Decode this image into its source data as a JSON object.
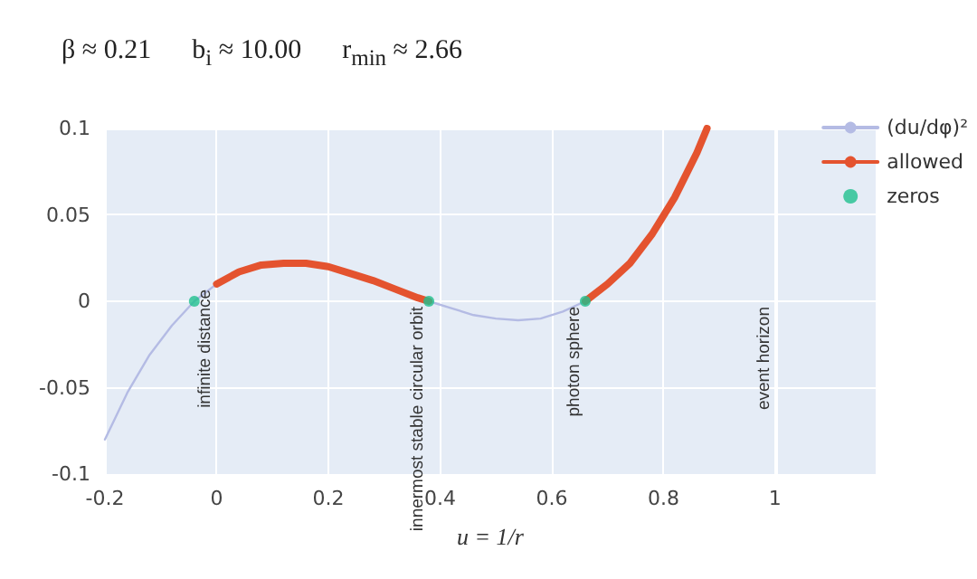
{
  "chart_data": {
    "type": "line",
    "title": "β ≈ 0.21      b$_{i}$ ≈ 10.00      r$_{min}$ ≈ 2.66",
    "xlabel": "u = 1/r",
    "series": [
      {
        "name": "(du/dφ)²",
        "color": "#b4bbe4",
        "x": [
          -0.2,
          -0.16,
          -0.12,
          -0.08,
          -0.04,
          0,
          0.2,
          0.38,
          0.42,
          0.46,
          0.5,
          0.54,
          0.58,
          0.62,
          0.66
        ],
        "values": [
          -0.08,
          -0.053,
          -0.031,
          -0.014,
          0,
          0.01,
          null,
          0,
          -0.004,
          -0.008,
          -0.01,
          -0.011,
          -0.01,
          -0.006,
          0
        ]
      },
      {
        "name": "allowed",
        "color": "#e4532f",
        "x": [
          0,
          0.04,
          0.08,
          0.12,
          0.16,
          0.2,
          0.24,
          0.28,
          0.32,
          0.36,
          0.38,
          0.5,
          0.66,
          0.7,
          0.74,
          0.78,
          0.82,
          0.86,
          0.878
        ],
        "values": [
          0.01,
          0.017,
          0.021,
          0.022,
          0.022,
          0.02,
          0.016,
          0.012,
          0.007,
          0.002,
          0,
          null,
          0,
          0.01,
          0.022,
          0.039,
          0.06,
          0.086,
          0.1
        ]
      },
      {
        "name": "zeros",
        "type": "scatter",
        "color": "#1fc08f",
        "x": [
          -0.04,
          0.38,
          0.66
        ],
        "values": [
          0,
          0,
          0
        ]
      }
    ],
    "annotations": [
      {
        "text": "infinite distance",
        "x": 0,
        "y": 0.01
      },
      {
        "text": "innermost stable circular orbit",
        "x": 0.38,
        "y": 0
      },
      {
        "text": "photon sphere",
        "x": 0.66,
        "y": 0
      }
    ],
    "ref_lines": [
      {
        "axis": "x",
        "value": 1,
        "label": "event horizon",
        "color": "#ffffff"
      }
    ],
    "xlim": [
      -0.2,
      1.18
    ],
    "xticks": [
      -0.2,
      0,
      0.2,
      0.4,
      0.6,
      0.8,
      1
    ],
    "ylim": [
      -0.1,
      0.1
    ],
    "yticks": [
      -0.1,
      -0.05,
      0,
      0.05,
      0.1
    ],
    "grid": true,
    "legend": "top right"
  }
}
